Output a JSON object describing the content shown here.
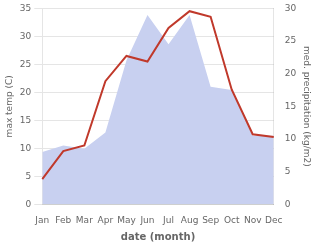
{
  "chart_data": {
    "type": "line",
    "categories": [
      "Jan",
      "Feb",
      "Mar",
      "Apr",
      "May",
      "Jun",
      "Jul",
      "Aug",
      "Sep",
      "Oct",
      "Nov",
      "Dec"
    ],
    "series": [
      {
        "type": "area",
        "color": "#c8d0f0",
        "axis": "y2",
        "values": [
          8.0,
          9.0,
          8.5,
          11.0,
          22.0,
          29.0,
          24.5,
          29.0,
          18.0,
          17.5,
          10.5,
          10.5
        ]
      },
      {
        "type": "line",
        "color": "#c0392b",
        "values": [
          4.5,
          9.5,
          10.5,
          22.0,
          26.5,
          25.5,
          31.5,
          34.5,
          33.5,
          20.5,
          12.5,
          12.0
        ]
      }
    ],
    "xlabel": "date (month)",
    "ylabel": "max temp (C)",
    "y2label": "med. precipitation (kg/m2)",
    "ylim": [
      0,
      35
    ],
    "yticks": [
      0,
      5,
      10,
      15,
      20,
      25,
      30,
      35
    ],
    "y2lim": [
      0,
      30
    ],
    "y2ticks": [
      0,
      5,
      10,
      15,
      20,
      25,
      30
    ],
    "grid": true
  }
}
